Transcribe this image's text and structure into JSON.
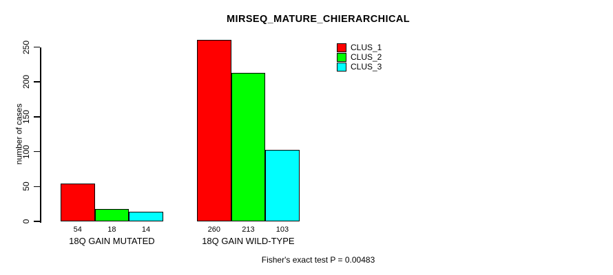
{
  "chart_data": {
    "type": "bar",
    "title": "MIRSEQ_MATURE_CHIERARCHICAL",
    "ylabel": "number of cases",
    "xlabel": "",
    "ylim": [
      0,
      250
    ],
    "yticks": [
      0,
      50,
      100,
      150,
      200,
      250
    ],
    "grid": false,
    "legend_position": "top-right",
    "categories": [
      "18Q GAIN MUTATED",
      "18Q GAIN WILD-TYPE"
    ],
    "series": [
      {
        "name": "CLUS_1",
        "color": "#ff0000",
        "values": [
          54,
          260
        ]
      },
      {
        "name": "CLUS_2",
        "color": "#00ff00",
        "values": [
          18,
          213
        ]
      },
      {
        "name": "CLUS_3",
        "color": "#00ffff",
        "values": [
          14,
          103
        ]
      }
    ],
    "annotation": "Fisher's exact test P = 0.00483"
  }
}
